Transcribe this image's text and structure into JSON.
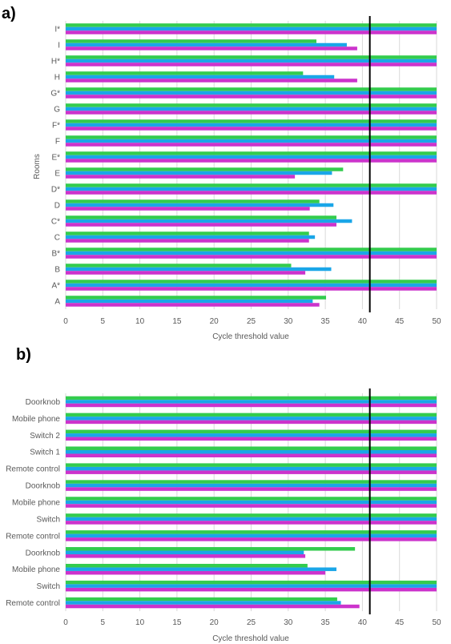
{
  "colors": {
    "series_green": "#33cc4d",
    "series_blue": "#1aa6e8",
    "series_magenta": "#cc33cc",
    "threshold": "#000000"
  },
  "chart_data": [
    {
      "type": "bar",
      "orientation": "horizontal",
      "panel_label": "a)",
      "ylabel": "Rooms",
      "xlabel": "Cycle threshold  value",
      "xlim": [
        0,
        50
      ],
      "xticks": [
        0,
        5,
        10,
        15,
        20,
        25,
        30,
        35,
        40,
        45,
        50
      ],
      "grid": true,
      "threshold_line": 41,
      "categories": [
        "I*",
        "I",
        "H*",
        "H",
        "G*",
        "G",
        "F*",
        "F",
        "E*",
        "E",
        "D*",
        "D",
        "C*",
        "C",
        "B*",
        "B",
        "A*",
        "A"
      ],
      "series": [
        {
          "values": [
            50,
            33.8,
            50,
            32,
            50,
            50,
            50,
            50,
            50,
            37.4,
            50,
            34.2,
            36.5,
            32.8,
            50,
            30.4,
            50,
            35.1
          ]
        },
        {
          "values": [
            50,
            37.9,
            50,
            36.2,
            50,
            50,
            50,
            50,
            50,
            35.9,
            50,
            36.1,
            38.6,
            33.6,
            50,
            35.8,
            50,
            33.3
          ]
        },
        {
          "values": [
            50,
            39.3,
            50,
            39.3,
            50,
            50,
            50,
            50,
            50,
            30.9,
            50,
            32.9,
            36.5,
            32.8,
            50,
            32.3,
            50,
            34.2
          ]
        }
      ]
    },
    {
      "type": "bar",
      "orientation": "horizontal",
      "panel_label": "b)",
      "ylabel": "",
      "xlabel": "Cycle threshold  value",
      "xlim": [
        0,
        50
      ],
      "xticks": [
        0,
        5,
        10,
        15,
        20,
        25,
        30,
        35,
        40,
        45,
        50
      ],
      "grid": true,
      "threshold_line": 41,
      "categories": [
        "Doorknob",
        "Mobile phone",
        "Switch 2",
        "Switch 1",
        "Remote control",
        "Doorknob",
        "Mobile phone",
        "Switch",
        "Remote control",
        "Doorknob",
        "Mobile phone",
        "Switch",
        "Remote control"
      ],
      "series": [
        {
          "values": [
            50,
            50,
            50,
            50,
            50,
            50,
            50,
            50,
            50,
            39.0,
            32.6,
            50,
            36.6
          ]
        },
        {
          "values": [
            50,
            50,
            50,
            50,
            50,
            50,
            50,
            50,
            50,
            32.1,
            36.5,
            50,
            37.1
          ]
        },
        {
          "values": [
            50,
            50,
            50,
            50,
            50,
            50,
            50,
            50,
            50,
            32.3,
            35.0,
            50,
            39.6
          ]
        }
      ]
    }
  ]
}
